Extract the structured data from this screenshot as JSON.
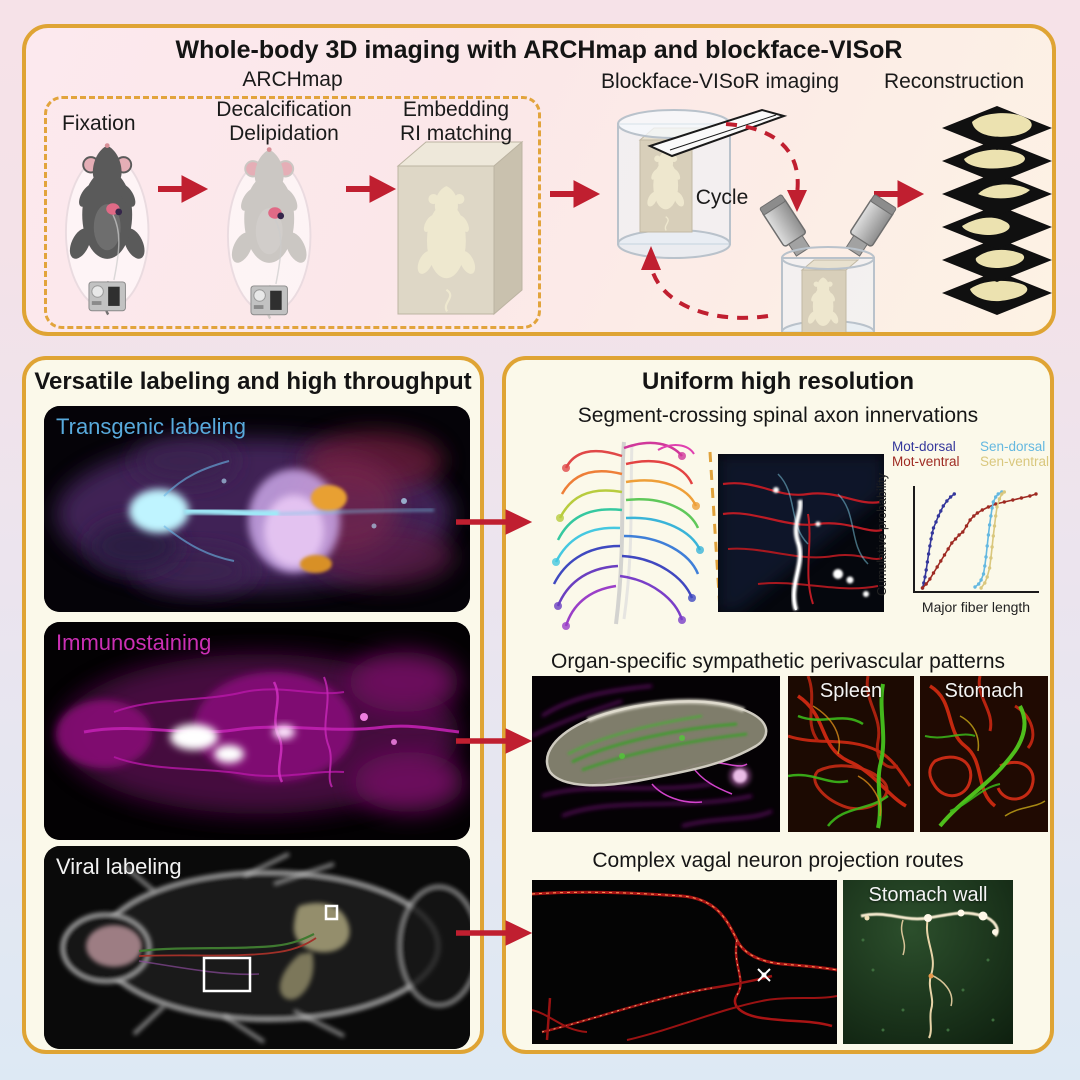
{
  "colors": {
    "panel_border": "#dfa434",
    "dashed_border": "#e2a43c",
    "arrow_red": "#c01f30",
    "top_panel_bg": "#fbe8ea",
    "bottom_panel_bg": "#fbf9ea",
    "page_bg_top": "#f6e2e8",
    "page_bg_bottom": "#dce9f4"
  },
  "top_panel": {
    "title": "Whole-body 3D imaging with ARCHmap and blockface-VISoR",
    "archmap_label": "ARCHmap",
    "steps": [
      {
        "lines": [
          "Fixation"
        ]
      },
      {
        "lines": [
          "Decalcification",
          "Delipidation"
        ]
      },
      {
        "lines": [
          "Embedding",
          "RI matching"
        ]
      }
    ],
    "blockface_label": "Blockface-VISoR imaging",
    "cycle_label": "Cycle",
    "reconstruction_label": "Reconstruction"
  },
  "left_panel": {
    "title": "Versatile labeling and high throughput",
    "images": [
      {
        "label": "Transgenic labeling",
        "label_color": "#58aadc"
      },
      {
        "label": "Immunostaining",
        "label_color": "#cb2fb4"
      },
      {
        "label": "Viral labeling",
        "label_color": "#f2f2f2"
      }
    ]
  },
  "right_panel": {
    "title": "Uniform high resolution",
    "section1": {
      "title": "Segment-crossing spinal axon innervations"
    },
    "section2": {
      "title": "Organ-specific sympathetic perivascular patterns",
      "labels": [
        "Spleen",
        "Stomach"
      ]
    },
    "section3": {
      "title": "Complex vagal neuron projection routes",
      "labels": [
        "Stomach wall"
      ]
    }
  },
  "chart_data": {
    "type": "line",
    "title": "",
    "xlabel": "Major fiber length",
    "ylabel": "Cumulative probability",
    "xlim": [
      0,
      1
    ],
    "ylim": [
      0,
      1
    ],
    "grid": false,
    "legend_position": "top",
    "legend_order": [
      0,
      2,
      1,
      3
    ],
    "series": [
      {
        "name": "Mot-dorsal",
        "color": "#34379b",
        "points": [
          [
            0.07,
            0.02
          ],
          [
            0.08,
            0.07
          ],
          [
            0.09,
            0.13
          ],
          [
            0.1,
            0.2
          ],
          [
            0.11,
            0.28
          ],
          [
            0.12,
            0.36
          ],
          [
            0.13,
            0.44
          ],
          [
            0.14,
            0.51
          ],
          [
            0.15,
            0.57
          ],
          [
            0.16,
            0.62
          ],
          [
            0.18,
            0.68
          ],
          [
            0.2,
            0.74
          ],
          [
            0.22,
            0.79
          ],
          [
            0.24,
            0.84
          ],
          [
            0.27,
            0.89
          ],
          [
            0.3,
            0.93
          ],
          [
            0.33,
            0.96
          ]
        ]
      },
      {
        "name": "Mot-ventral",
        "color": "#9e2a22",
        "points": [
          [
            0.07,
            0.02
          ],
          [
            0.1,
            0.06
          ],
          [
            0.13,
            0.11
          ],
          [
            0.16,
            0.17
          ],
          [
            0.19,
            0.23
          ],
          [
            0.22,
            0.29
          ],
          [
            0.25,
            0.35
          ],
          [
            0.28,
            0.41
          ],
          [
            0.31,
            0.47
          ],
          [
            0.34,
            0.51
          ],
          [
            0.37,
            0.55
          ],
          [
            0.4,
            0.58
          ],
          [
            0.43,
            0.64
          ],
          [
            0.46,
            0.7
          ],
          [
            0.49,
            0.74
          ],
          [
            0.52,
            0.77
          ],
          [
            0.56,
            0.8
          ],
          [
            0.61,
            0.83
          ],
          [
            0.67,
            0.86
          ],
          [
            0.74,
            0.88
          ],
          [
            0.81,
            0.9
          ],
          [
            0.88,
            0.92
          ],
          [
            0.95,
            0.94
          ],
          [
            1.0,
            0.96
          ]
        ]
      },
      {
        "name": "Sen-dorsal",
        "color": "#64b8e0",
        "points": [
          [
            0.5,
            0.03
          ],
          [
            0.53,
            0.06
          ],
          [
            0.55,
            0.1
          ],
          [
            0.57,
            0.16
          ],
          [
            0.58,
            0.24
          ],
          [
            0.59,
            0.33
          ],
          [
            0.6,
            0.44
          ],
          [
            0.61,
            0.55
          ],
          [
            0.62,
            0.65
          ],
          [
            0.63,
            0.74
          ],
          [
            0.64,
            0.82
          ],
          [
            0.65,
            0.88
          ],
          [
            0.67,
            0.93
          ],
          [
            0.69,
            0.96
          ],
          [
            0.72,
            0.98
          ]
        ]
      },
      {
        "name": "Sen-ventral",
        "color": "#d9c77d",
        "points": [
          [
            0.55,
            0.02
          ],
          [
            0.58,
            0.07
          ],
          [
            0.6,
            0.13
          ],
          [
            0.62,
            0.22
          ],
          [
            0.63,
            0.32
          ],
          [
            0.64,
            0.43
          ],
          [
            0.65,
            0.54
          ],
          [
            0.66,
            0.64
          ],
          [
            0.67,
            0.74
          ],
          [
            0.68,
            0.83
          ],
          [
            0.7,
            0.91
          ],
          [
            0.72,
            0.96
          ],
          [
            0.74,
            0.98
          ]
        ]
      }
    ]
  }
}
